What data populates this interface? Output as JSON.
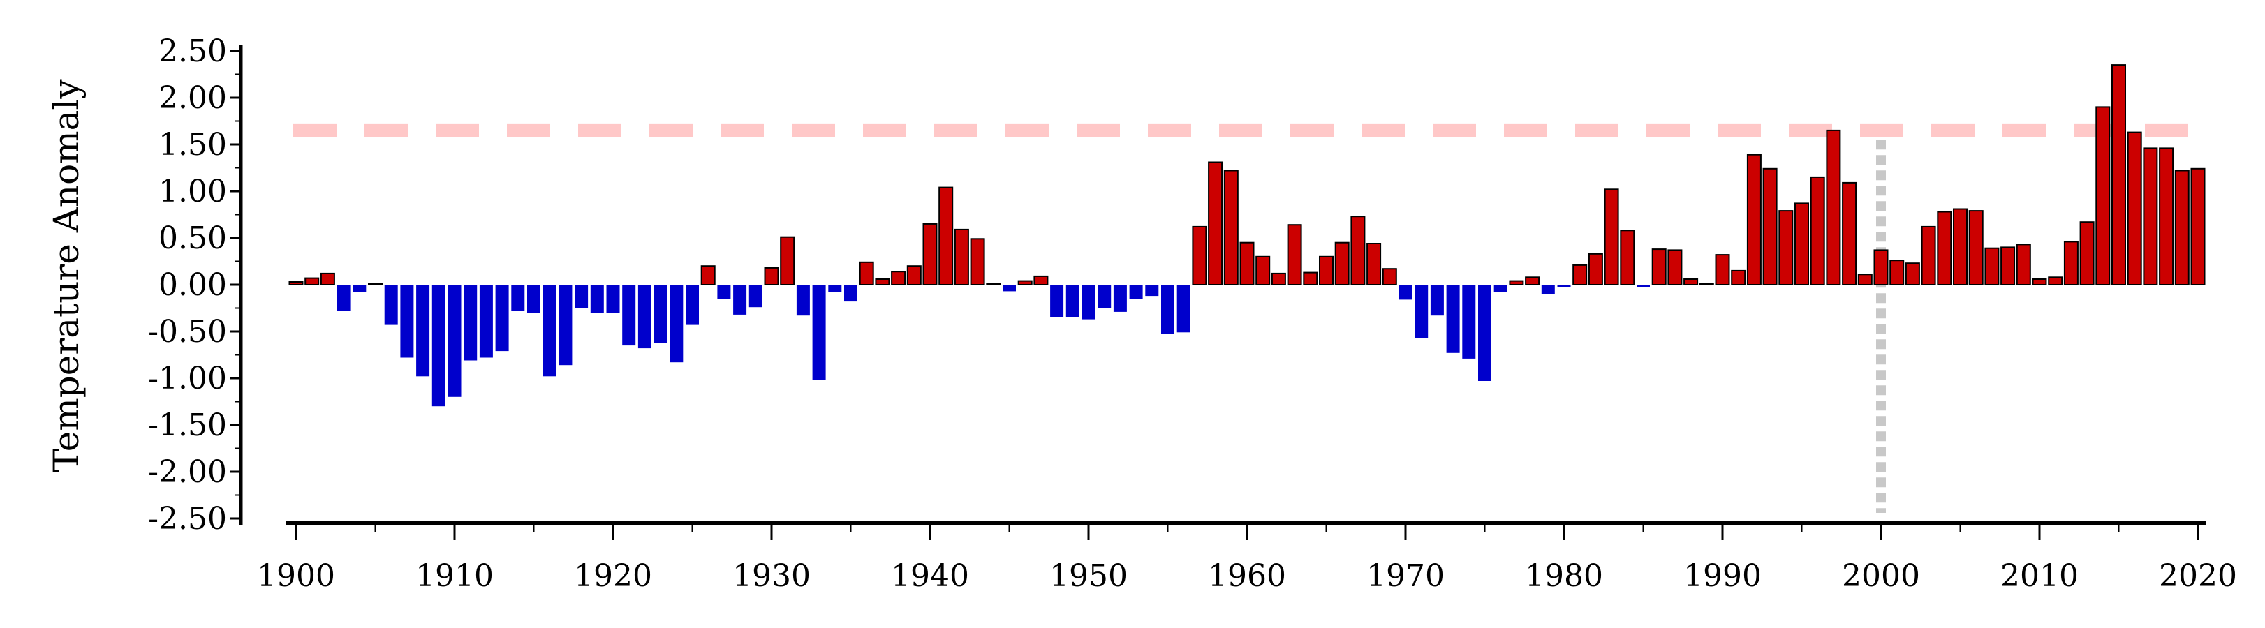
{
  "chart_data": {
    "type": "bar",
    "title": "",
    "xlabel": "",
    "ylabel": "Temperature Anomaly",
    "xlim": [
      1900,
      2020
    ],
    "ylim": [
      -2.5,
      2.5
    ],
    "x_ticks": [
      "1900",
      "1910",
      "1920",
      "1930",
      "1940",
      "1950",
      "1960",
      "1970",
      "1980",
      "1990",
      "2000",
      "2010",
      "2020"
    ],
    "y_ticks": [
      "2.50",
      "2.00",
      "1.50",
      "1.00",
      "0.50",
      "0.00",
      "-0.50",
      "-1.00",
      "-1.50",
      "-2.00",
      "-2.50"
    ],
    "threshold": 1.65,
    "threshold_color": "#ffc8c8",
    "reference_year": 2000,
    "reference_color": "#c8c8c8",
    "positive_color": "#cc0000",
    "negative_color": "#0000cc",
    "grid": false,
    "legend": "none",
    "years": [
      1900,
      1901,
      1902,
      1903,
      1904,
      1905,
      1906,
      1907,
      1908,
      1909,
      1910,
      1911,
      1912,
      1913,
      1914,
      1915,
      1916,
      1917,
      1918,
      1919,
      1920,
      1921,
      1922,
      1923,
      1924,
      1925,
      1926,
      1927,
      1928,
      1929,
      1930,
      1931,
      1932,
      1933,
      1934,
      1935,
      1936,
      1937,
      1938,
      1939,
      1940,
      1941,
      1942,
      1943,
      1944,
      1945,
      1946,
      1947,
      1948,
      1949,
      1950,
      1951,
      1952,
      1953,
      1954,
      1955,
      1956,
      1957,
      1958,
      1959,
      1960,
      1961,
      1962,
      1963,
      1964,
      1965,
      1966,
      1967,
      1968,
      1969,
      1970,
      1971,
      1972,
      1973,
      1974,
      1975,
      1976,
      1977,
      1978,
      1979,
      1980,
      1981,
      1982,
      1983,
      1984,
      1985,
      1986,
      1987,
      1988,
      1989,
      1990,
      1991,
      1992,
      1993,
      1994,
      1995,
      1996,
      1997,
      1998,
      1999,
      2000,
      2001,
      2002,
      2003,
      2004,
      2005,
      2006,
      2007,
      2008,
      2009,
      2010,
      2011,
      2012,
      2013,
      2014,
      2015,
      2016,
      2017,
      2018,
      2019,
      2020
    ],
    "values": [
      0.03,
      0.07,
      0.12,
      -0.28,
      -0.08,
      0.01,
      -0.43,
      -0.78,
      -0.98,
      -1.3,
      -1.2,
      -0.81,
      -0.78,
      -0.71,
      -0.28,
      -0.3,
      -0.98,
      -0.86,
      -0.25,
      -0.3,
      -0.3,
      -0.65,
      -0.68,
      -0.62,
      -0.83,
      -0.43,
      0.2,
      -0.15,
      -0.32,
      -0.24,
      0.18,
      0.51,
      -0.33,
      -1.02,
      -0.08,
      -0.18,
      0.24,
      0.06,
      0.14,
      0.2,
      0.65,
      1.04,
      0.59,
      0.49,
      0.0,
      -0.07,
      0.04,
      0.09,
      -0.35,
      -0.35,
      -0.37,
      -0.25,
      -0.29,
      -0.15,
      -0.12,
      -0.53,
      -0.51,
      0.62,
      1.31,
      1.22,
      0.45,
      0.3,
      0.12,
      0.64,
      0.13,
      0.3,
      0.45,
      0.73,
      0.44,
      0.17,
      -0.16,
      -0.57,
      -0.33,
      -0.73,
      -0.79,
      -1.03,
      -0.08,
      0.04,
      0.08,
      -0.1,
      -0.03,
      0.21,
      0.33,
      1.02,
      0.58,
      -0.03,
      0.38,
      0.37,
      0.06,
      0.0,
      0.32,
      0.15,
      1.39,
      1.24,
      0.79,
      0.87,
      1.15,
      1.65,
      1.09,
      0.11,
      0.37,
      0.26,
      0.23,
      0.62,
      0.78,
      0.81,
      0.79,
      0.39,
      0.4,
      0.43,
      0.06,
      0.08,
      0.46,
      0.67,
      1.9,
      2.35,
      1.63,
      1.46,
      1.46,
      1.22,
      1.24
    ]
  }
}
